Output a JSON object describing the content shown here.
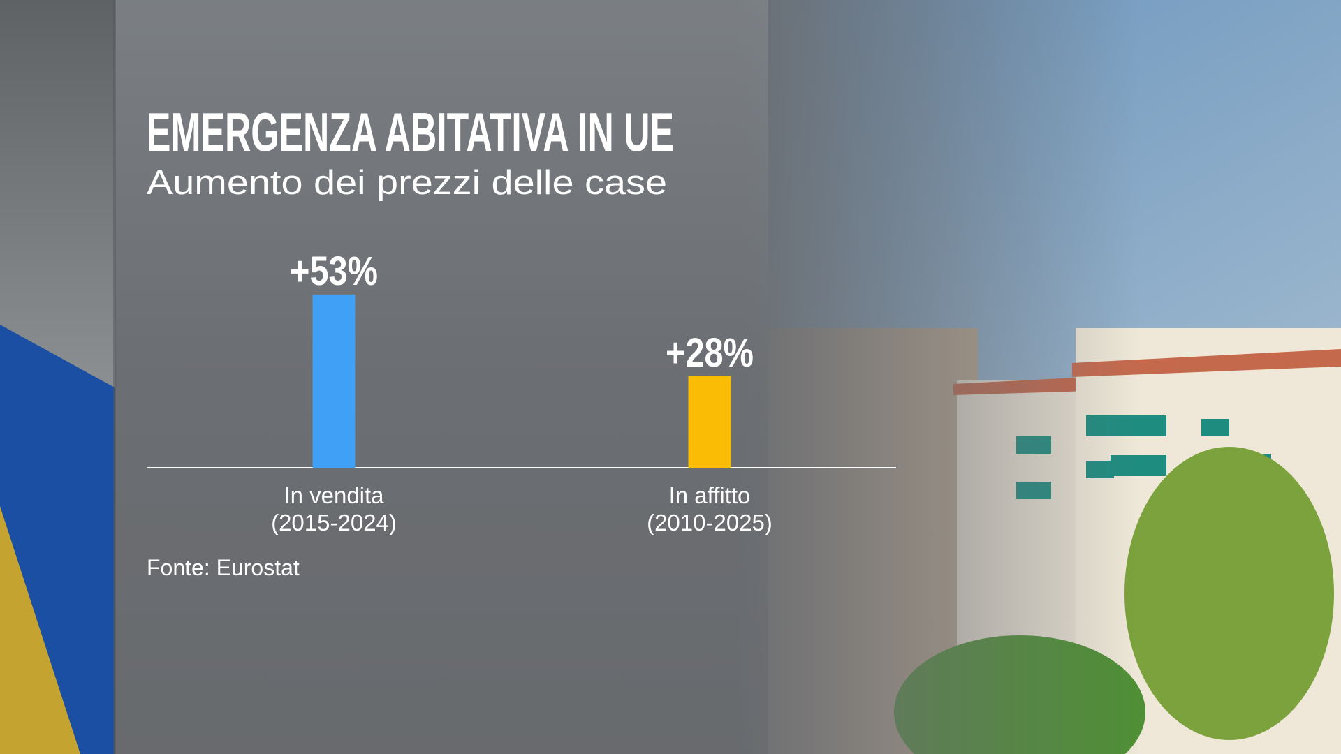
{
  "chart_data": {
    "type": "bar",
    "title": "EMERGENZA ABITATIVA IN UE",
    "subtitle": "Aumento dei prezzi delle case",
    "categories": [
      "In vendita",
      "In affitto"
    ],
    "periods": [
      "(2015-2024)",
      "(2010-2025)"
    ],
    "series": [
      {
        "name": null,
        "colors": [
          "#3fa0f5",
          "#fbbc05"
        ],
        "values": [
          53,
          28
        ],
        "value_labels": [
          "+53%",
          "+28%"
        ]
      }
    ],
    "ylim": [
      0,
      60
    ],
    "source": "Fonte: Eurostat"
  }
}
